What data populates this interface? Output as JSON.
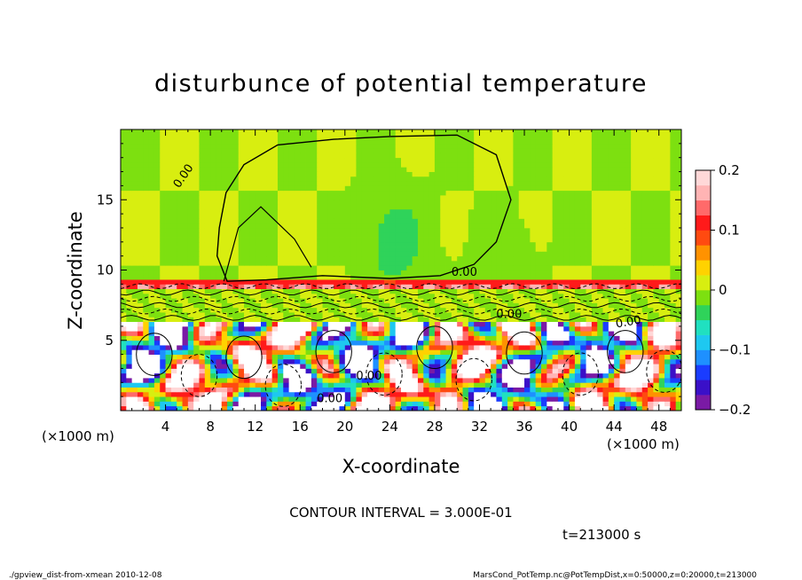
{
  "chart_data": {
    "type": "heatmap",
    "title": "disturbunce of potential temperature",
    "xlabel": "X-coordinate",
    "ylabel": "Z-coordinate",
    "x_unit_left": "(×1000 m)",
    "x_unit_right": "(×1000 m)",
    "xlim": [
      0,
      50
    ],
    "ylim": [
      0,
      20
    ],
    "x_ticks": [
      4,
      8,
      12,
      16,
      20,
      24,
      28,
      32,
      36,
      40,
      44,
      48
    ],
    "x_tick_labels": [
      "4",
      "8",
      "12",
      "16",
      "20",
      "24",
      "28",
      "32",
      "36",
      "40",
      "44",
      "48"
    ],
    "y_ticks": [
      5,
      10,
      15
    ],
    "y_tick_labels": [
      "5",
      "10",
      "15"
    ],
    "colorbar": {
      "range": [
        -0.2,
        0.2
      ],
      "ticks": [
        0.2,
        0.1,
        0,
        -0.1,
        -0.2
      ],
      "tick_labels": [
        "0.2",
        "0.1",
        "0",
        "−0.1",
        "−0.2"
      ],
      "colors": [
        "#7a1aa5",
        "#3a10c8",
        "#1a3cff",
        "#1e90ff",
        "#1ec8f0",
        "#20e0c0",
        "#2fd35a",
        "#7de010",
        "#d8ee10",
        "#ffd200",
        "#ff9200",
        "#ff4a10",
        "#ff1a1a",
        "#ff6a6a",
        "#ffb4b4",
        "#ffd8d8"
      ]
    },
    "contour_labels": [
      "0.00",
      "0.00",
      "0.00",
      "0.00",
      "0.00",
      "0.00"
    ],
    "contour_interval_text": "CONTOUR INTERVAL = 3.000E-01",
    "time_text": "t=213000 s"
  },
  "footer": {
    "left": "./gpview_dist-from-xmean 2010-12-08",
    "right": "MarsCond_PotTemp.nc@PotTempDist,x=0:50000,z=0:20000,t=213000"
  },
  "colors": {
    "background": "#ffffff",
    "upper_field": "#2fd35a",
    "neutral_band": "#ffffff",
    "cold_core": "#1a3cff",
    "warm_core": "#ff1a1a"
  }
}
